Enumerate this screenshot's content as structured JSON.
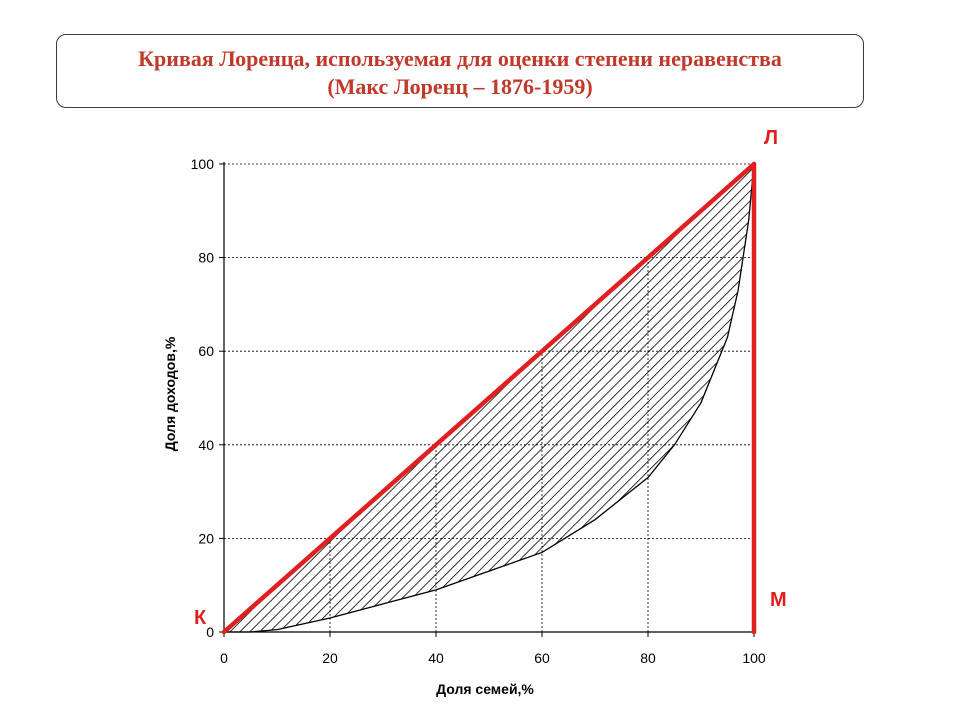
{
  "header": {
    "title": "Кривая Лоренца, используемая для оценки степени неравенства",
    "subtitle": "(Макс Лоренц – 1876-1959)"
  },
  "chart_data": {
    "type": "line",
    "xlabel": "Доля семей,%",
    "ylabel": "Доля доходов,%",
    "xlim": [
      0,
      100
    ],
    "ylim": [
      0,
      100
    ],
    "x_ticks": [
      "0",
      "20",
      "40",
      "60",
      "80",
      "100"
    ],
    "y_ticks": [
      "0",
      "20",
      "40",
      "60",
      "80",
      "100"
    ],
    "grid": "dashed, at tick values",
    "area_between_lines": "hatched",
    "series": [
      {
        "x": [
          0,
          100
        ],
        "y": [
          0,
          100
        ],
        "color": "#e02020"
      },
      {
        "x": [
          0,
          5,
          10,
          20,
          30,
          40,
          50,
          55,
          60,
          70,
          80,
          85,
          90,
          95,
          97,
          99,
          100
        ],
        "y": [
          0,
          0,
          0.5,
          3,
          6,
          9,
          13,
          15,
          17,
          24,
          33,
          40,
          49,
          63,
          73,
          88,
          100
        ],
        "color": "#000000"
      },
      {
        "x": [
          100,
          100
        ],
        "y": [
          0,
          100
        ],
        "color": "#e02020"
      }
    ],
    "annotations": [
      {
        "text": "К",
        "x": 0,
        "y": 0,
        "color": "#e02020"
      },
      {
        "text": "Л",
        "x": 100,
        "y": 100,
        "color": "#e02020"
      },
      {
        "text": "М",
        "x": 100,
        "y": 0,
        "color": "#e02020"
      }
    ]
  }
}
